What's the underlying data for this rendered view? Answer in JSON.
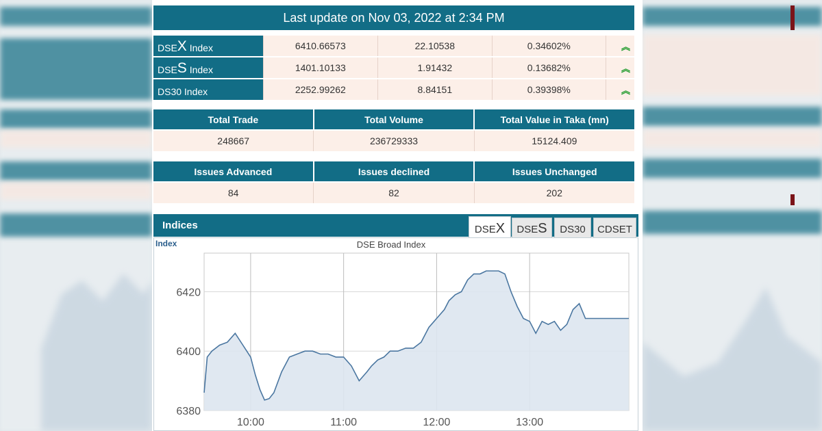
{
  "header": {
    "update_text": "Last update on Nov 03, 2022 at 2:34 PM"
  },
  "indices": [
    {
      "prefix": "DSE",
      "big": "X",
      "suffix": " Index",
      "value": "6410.66573",
      "change": "22.10538",
      "percent": "0.34602%",
      "trend": "up",
      "trend_icon": "︽"
    },
    {
      "prefix": "DSE",
      "big": "S",
      "suffix": " Index",
      "value": "1401.10133",
      "change": "1.91432",
      "percent": "0.13682%",
      "trend": "up",
      "trend_icon": "︽"
    },
    {
      "prefix": "DS30",
      "big": "",
      "suffix": " Index",
      "value": "2252.99262",
      "change": "8.84151",
      "percent": "0.39398%",
      "trend": "up",
      "trend_icon": "︽"
    }
  ],
  "trade_stats": {
    "headers": [
      "Total Trade",
      "Total Volume",
      "Total Value in Taka (mn)"
    ],
    "values": [
      "248667",
      "236729333",
      "15124.409"
    ]
  },
  "issue_stats": {
    "headers": [
      "Issues Advanced",
      "Issues declined",
      "Issues Unchanged"
    ],
    "values": [
      "84",
      "82",
      "202"
    ]
  },
  "indices_panel": {
    "title": "Indices",
    "tabs": [
      {
        "prefix": "DSE",
        "big": "X",
        "active": true
      },
      {
        "prefix": "DSE",
        "big": "S",
        "active": false
      },
      {
        "prefix": "DS30",
        "big": "",
        "active": false
      },
      {
        "prefix": "CDSET",
        "big": "",
        "active": false
      }
    ]
  },
  "colors": {
    "header_teal": "#126d86",
    "row_fill": "#fcefe8",
    "up_green": "#1d9a2a",
    "line": "#4a76a0",
    "area": "#dde6ef",
    "accent_maroon": "#7b1419"
  },
  "chart_data": {
    "type": "area",
    "title": "DSE Broad Index",
    "ylabel": "Index",
    "xlabel": "",
    "x_ticks": [
      "10:00",
      "11:00",
      "12:00",
      "13:00"
    ],
    "y_ticks": [
      6380,
      6400,
      6420
    ],
    "ylim": [
      6380,
      6433
    ],
    "x_range": [
      "09:30",
      "14:04"
    ],
    "grid": true,
    "series": [
      {
        "x": [
          "09:30",
          "09:32",
          "09:35",
          "09:40",
          "09:45",
          "09:50",
          "09:55",
          "10:00",
          "10:03",
          "10:06",
          "10:09",
          "10:12",
          "10:15",
          "10:20",
          "10:25",
          "10:30",
          "10:35",
          "10:40",
          "10:45",
          "10:50",
          "10:55",
          "11:00",
          "11:05",
          "11:10",
          "11:15",
          "11:18",
          "11:22",
          "11:26",
          "11:30",
          "11:35",
          "11:40",
          "11:45",
          "11:50",
          "11:55",
          "12:00",
          "12:05",
          "12:08",
          "12:12",
          "12:16",
          "12:20",
          "12:24",
          "12:28",
          "12:32",
          "12:36",
          "12:40",
          "12:44",
          "12:48",
          "12:52",
          "12:56",
          "13:00",
          "13:04",
          "13:08",
          "13:12",
          "13:16",
          "13:20",
          "13:24",
          "13:28",
          "13:32",
          "13:36",
          "13:40",
          "13:44",
          "13:48",
          "13:52",
          "13:56",
          "14:00",
          "14:04"
        ],
        "y": [
          6386,
          6398,
          6400,
          6402,
          6403,
          6406,
          6402,
          6398,
          6392,
          6387,
          6383.5,
          6384,
          6386,
          6393,
          6398,
          6399,
          6400,
          6400,
          6399,
          6399,
          6398,
          6398,
          6395,
          6390,
          6393,
          6395,
          6397,
          6398,
          6400,
          6400,
          6401,
          6401,
          6403,
          6408,
          6411,
          6414,
          6417,
          6419,
          6420,
          6424,
          6426,
          6426,
          6427,
          6427,
          6427,
          6426,
          6420,
          6415,
          6411,
          6410,
          6406,
          6410,
          6409,
          6410,
          6407,
          6409,
          6414,
          6416,
          6411,
          6411,
          6411,
          6411,
          6411,
          6411,
          6411,
          6411
        ]
      }
    ]
  }
}
